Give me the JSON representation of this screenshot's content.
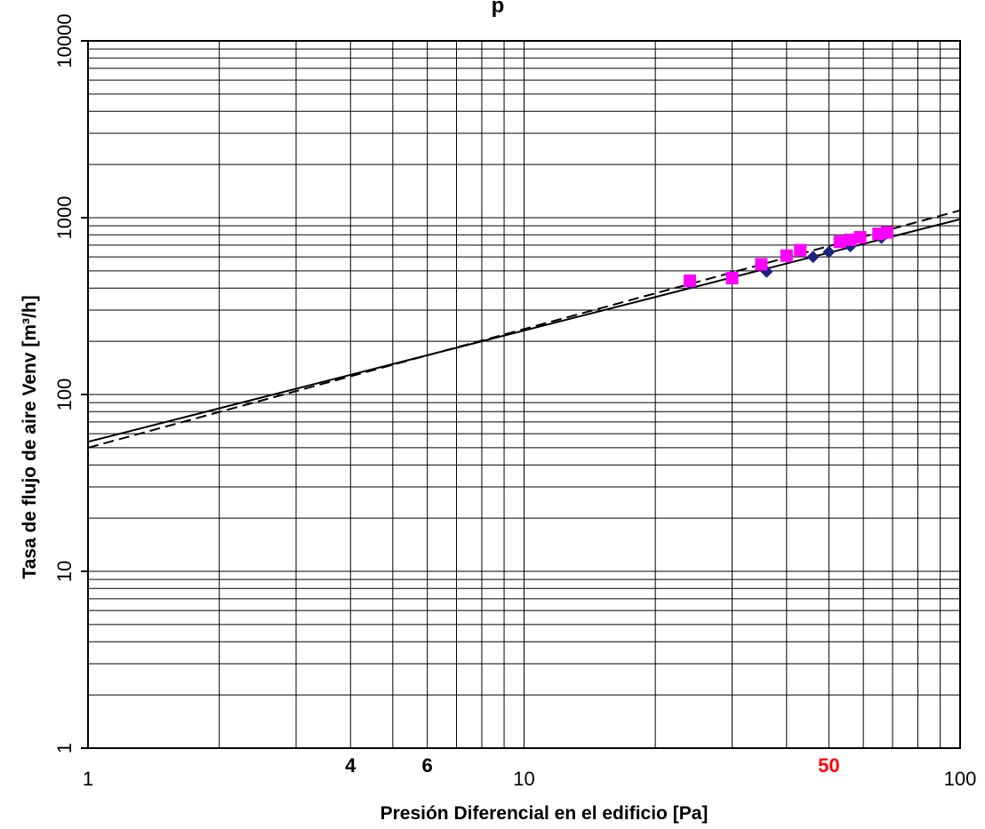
{
  "chart_data": {
    "type": "scatter",
    "title": "p",
    "xlabel": "Presión Diferencial en el edificio [Pa]",
    "ylabel": "Tasa de flujo de aire Venv  [m³/h]",
    "xscale": "log",
    "yscale": "log",
    "xlim": [
      1,
      100
    ],
    "ylim": [
      1,
      10000
    ],
    "grid": true,
    "x_tick_labels": [
      "1",
      "10",
      "100"
    ],
    "y_tick_labels": [
      "1",
      "10",
      "100",
      "1000",
      "10000"
    ],
    "x_extra_labels": [
      {
        "value": 4,
        "text": "4",
        "color": "#000000"
      },
      {
        "value": 6,
        "text": "6",
        "color": "#000000"
      },
      {
        "value": 50,
        "text": "50",
        "color": "#ff0000"
      }
    ],
    "colors": {
      "series_diamond": "#1a237e",
      "series_square": "#ff00ff",
      "highlight": "#ff0000",
      "grid": "#000000"
    },
    "series": [
      {
        "marker": "diamond",
        "color": "#1a237e",
        "points": [
          {
            "x": 24,
            "y": 425
          },
          {
            "x": 30,
            "y": 470
          },
          {
            "x": 36,
            "y": 495
          },
          {
            "x": 46,
            "y": 600
          },
          {
            "x": 50,
            "y": 640
          },
          {
            "x": 56,
            "y": 690
          },
          {
            "x": 66,
            "y": 770
          }
        ]
      },
      {
        "marker": "square",
        "color": "#ff00ff",
        "points": [
          {
            "x": 24,
            "y": 440
          },
          {
            "x": 30,
            "y": 455
          },
          {
            "x": 35,
            "y": 545
          },
          {
            "x": 40,
            "y": 610
          },
          {
            "x": 43,
            "y": 655
          },
          {
            "x": 53,
            "y": 730
          },
          {
            "x": 56,
            "y": 750
          },
          {
            "x": 59,
            "y": 775
          },
          {
            "x": 65,
            "y": 810
          },
          {
            "x": 68,
            "y": 825
          }
        ]
      },
      {
        "line": "solid",
        "color": "#000000",
        "points": [
          {
            "x": 1,
            "y": 54
          },
          {
            "x": 100,
            "y": 980
          }
        ]
      },
      {
        "line": "dashed",
        "color": "#000000",
        "points": [
          {
            "x": 1,
            "y": 50
          },
          {
            "x": 100,
            "y": 1100
          }
        ]
      }
    ]
  }
}
